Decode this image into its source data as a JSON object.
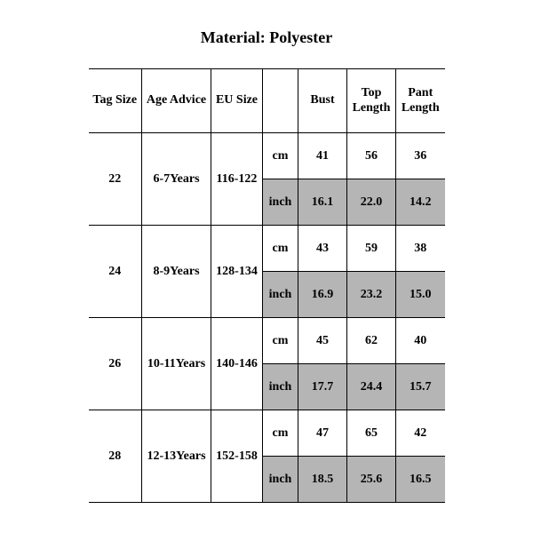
{
  "title": "Material: Polyester",
  "table": {
    "type": "table",
    "background_color": "#ffffff",
    "border_color": "#000000",
    "text_color": "#000000",
    "shade_color": "#b5b5b5",
    "font_family": "Times New Roman",
    "header_fontsize": 14,
    "cell_fontsize": 14,
    "columns": [
      {
        "key": "tag",
        "label": "Tag Size",
        "width": 60
      },
      {
        "key": "age",
        "label": "Age Advice",
        "width": 78
      },
      {
        "key": "eu",
        "label": "EU Size",
        "width": 58
      },
      {
        "key": "unit",
        "label": "",
        "width": 40
      },
      {
        "key": "bust",
        "label": "Bust",
        "width": 55
      },
      {
        "key": "topl",
        "label": "Top Length",
        "width": 55
      },
      {
        "key": "pant",
        "label": "Pant Length",
        "width": 55
      }
    ],
    "unit_labels": {
      "cm": "cm",
      "inch": "inch"
    },
    "rows": [
      {
        "tag": "22",
        "age": "6-7Years",
        "eu": "116-122",
        "cm": {
          "bust": "41",
          "topl": "56",
          "pant": "36"
        },
        "inch": {
          "bust": "16.1",
          "topl": "22.0",
          "pant": "14.2"
        }
      },
      {
        "tag": "24",
        "age": "8-9Years",
        "eu": "128-134",
        "cm": {
          "bust": "43",
          "topl": "59",
          "pant": "38"
        },
        "inch": {
          "bust": "16.9",
          "topl": "23.2",
          "pant": "15.0"
        }
      },
      {
        "tag": "26",
        "age": "10-11Years",
        "eu": "140-146",
        "cm": {
          "bust": "45",
          "topl": "62",
          "pant": "40"
        },
        "inch": {
          "bust": "17.7",
          "topl": "24.4",
          "pant": "15.7"
        }
      },
      {
        "tag": "28",
        "age": "12-13Years",
        "eu": "152-158",
        "cm": {
          "bust": "47",
          "topl": "65",
          "pant": "42"
        },
        "inch": {
          "bust": "18.5",
          "topl": "25.6",
          "pant": "16.5"
        }
      }
    ]
  }
}
